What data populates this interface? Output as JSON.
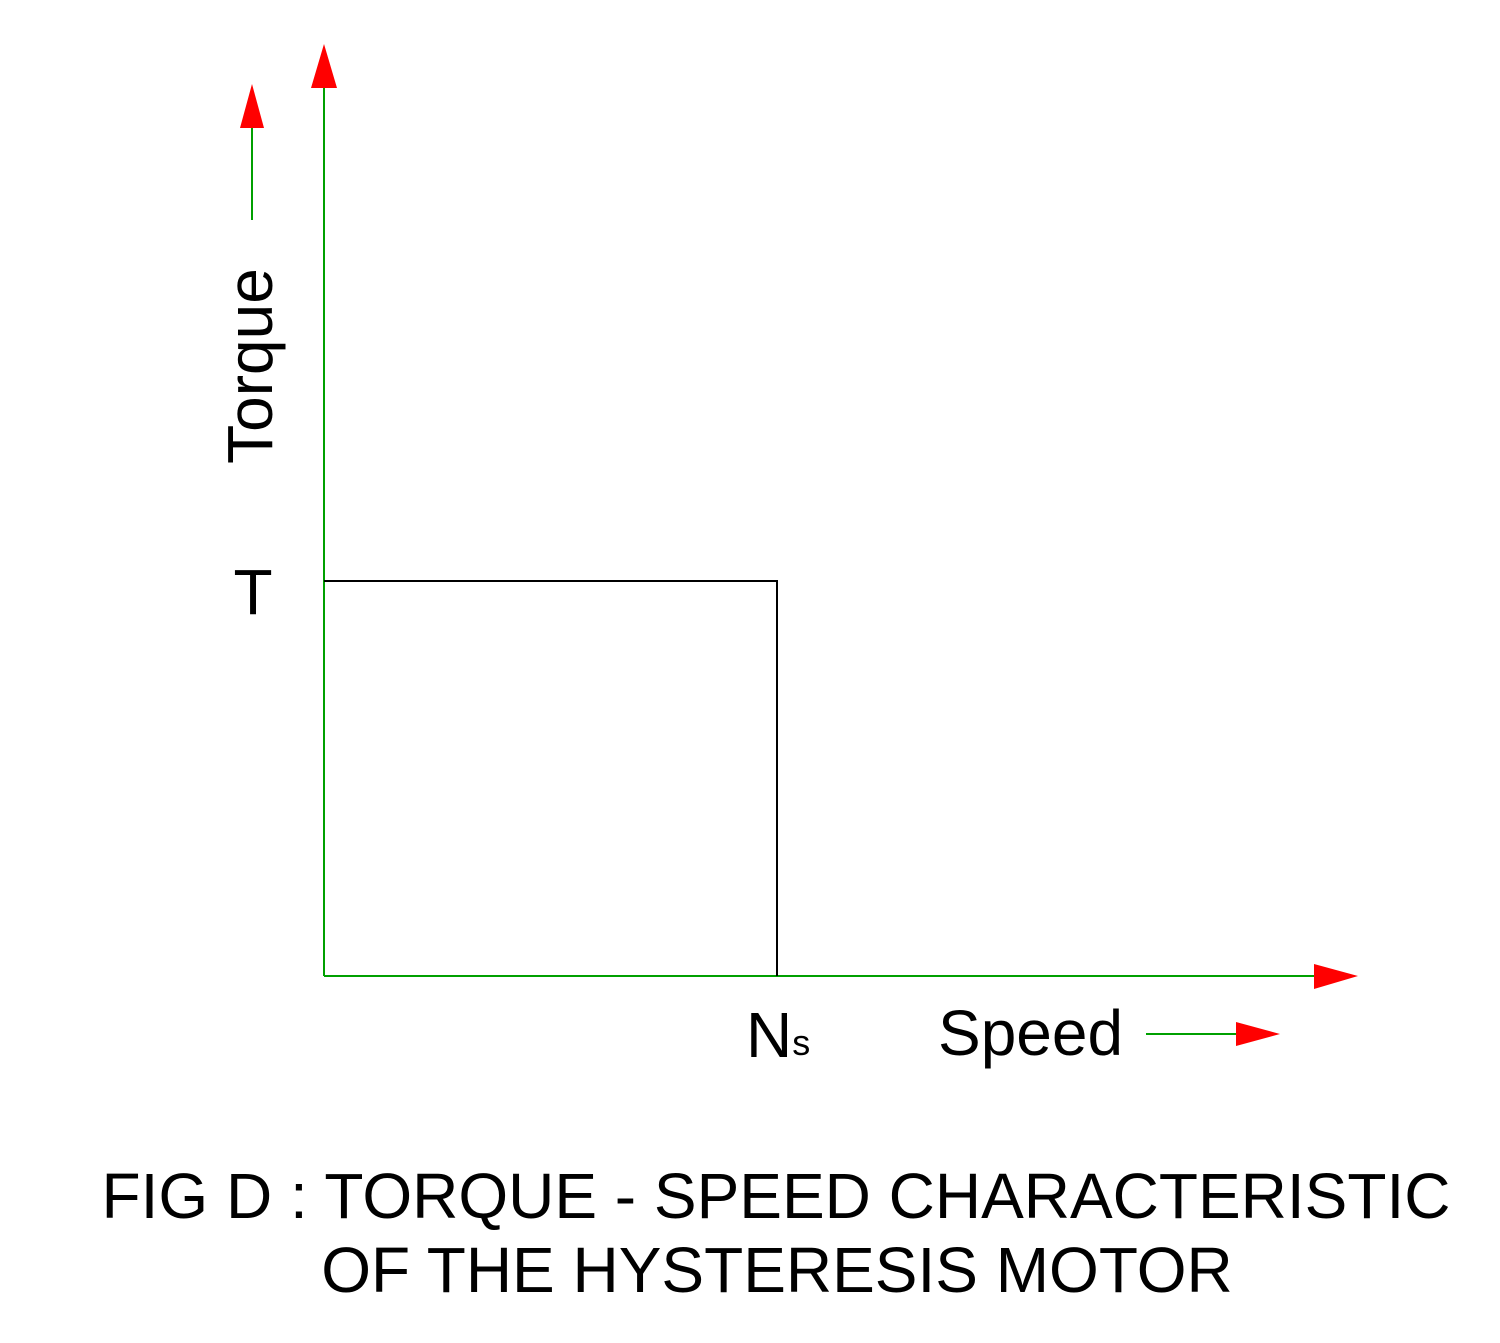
{
  "chart_data": {
    "type": "line",
    "title": "",
    "xlabel": "Speed",
    "ylabel": "Torque",
    "x_tick_labels": [
      {
        "main": "N",
        "sub": "s"
      }
    ],
    "y_tick_labels": [
      "T"
    ],
    "series": [
      {
        "points": [
          {
            "x": 0,
            "y": "T"
          },
          {
            "x": "Ns",
            "y": "T"
          },
          {
            "x": "Ns",
            "y": 0
          }
        ]
      }
    ],
    "grid": false,
    "legend": "none"
  },
  "caption": {
    "line1": "FIG D : TORQUE - SPEED CHARACTERISTIC",
    "line2": "OF THE HYSTERESIS MOTOR"
  },
  "colors": {
    "axis": "#00a000",
    "arrow": "#ff0000",
    "curve": "#000000",
    "text": "#000000"
  }
}
